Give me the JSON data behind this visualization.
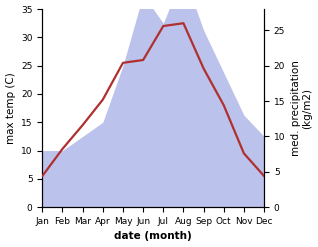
{
  "months": [
    "Jan",
    "Feb",
    "Mar",
    "Apr",
    "May",
    "Jun",
    "Jul",
    "Aug",
    "Sep",
    "Oct",
    "Nov",
    "Dec"
  ],
  "x": [
    1,
    2,
    3,
    4,
    5,
    6,
    7,
    8,
    9,
    10,
    11,
    12
  ],
  "temperature": [
    5.5,
    10.3,
    14.5,
    19.0,
    25.5,
    26.0,
    32.0,
    32.5,
    24.5,
    18.0,
    9.5,
    5.5
  ],
  "precipitation": [
    8,
    8,
    10,
    12,
    20,
    30,
    26,
    33,
    25,
    19,
    13,
    10
  ],
  "temp_color": "#b03030",
  "precip_color": "#b0b8e8",
  "temp_ylim": [
    0,
    35
  ],
  "precip_ylim": [
    0,
    28
  ],
  "temp_yticks": [
    0,
    5,
    10,
    15,
    20,
    25,
    30,
    35
  ],
  "precip_yticks": [
    0,
    5,
    10,
    15,
    20,
    25
  ],
  "xlabel": "date (month)",
  "ylabel_left": "max temp (C)",
  "ylabel_right": "med. precipitation\n(kg/m2)",
  "background_color": "#ffffff",
  "label_fontsize": 7.5,
  "tick_fontsize": 6.5
}
